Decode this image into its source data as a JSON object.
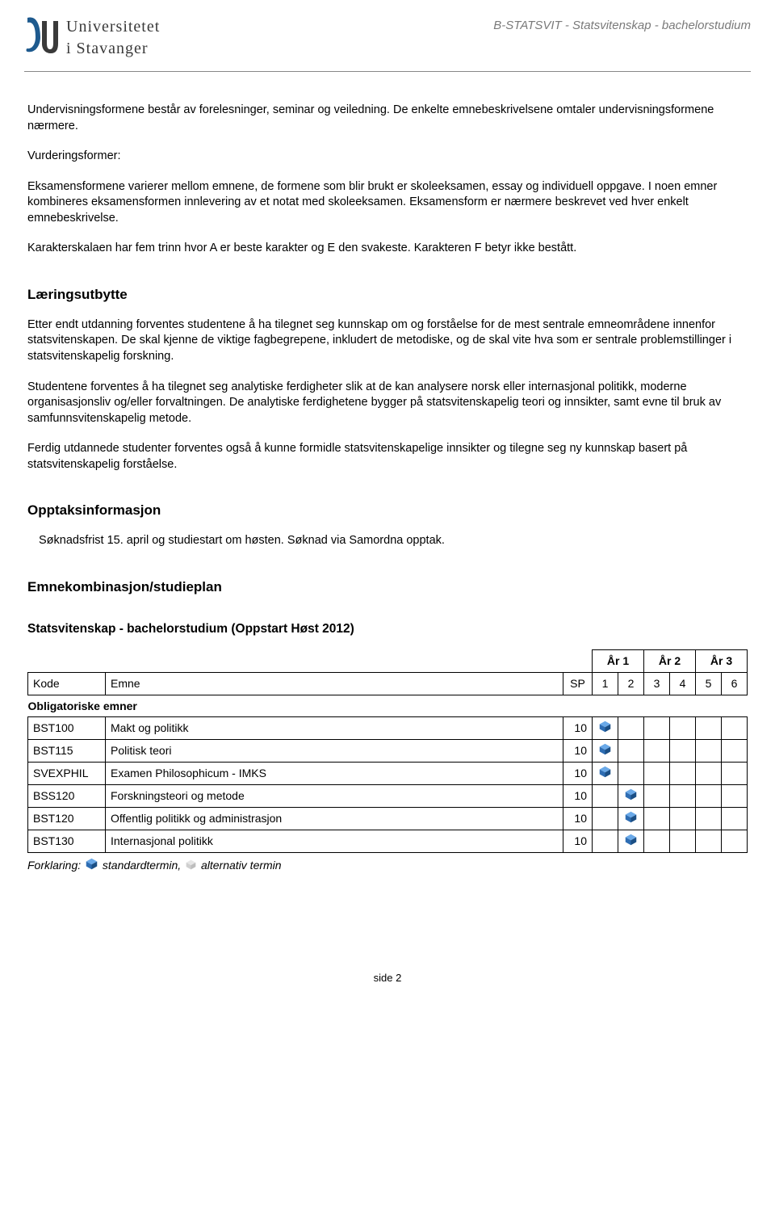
{
  "header": {
    "uni_line1": "Universitetet",
    "uni_line2": "i Stavanger",
    "doc_title": "B-STATSVIT - Statsvitenskap - bachelorstudium"
  },
  "body": {
    "p1": "Undervisningsformene består av forelesninger, seminar og veiledning. De enkelte emnebeskrivelsene omtaler undervisningsformene nærmere.",
    "p2_label": "Vurderingsformer:",
    "p3": "Eksamensformene varierer mellom emnene, de formene som blir brukt er skoleeksamen, essay og individuell oppgave. I noen emner kombineres eksamensformen innlevering av et notat med skoleeksamen. Eksamensform er nærmere beskrevet ved hver enkelt emnebeskrivelse.",
    "p4": "Karakterskalaen har fem trinn hvor A er beste karakter og E den svakeste. Karakteren F betyr ikke bestått.",
    "h_lu": "Læringsutbytte",
    "lu_p1": "Etter endt utdanning forventes studentene å ha tilegnet seg kunnskap om og forståelse for de mest sentrale emneområdene innenfor statsvitenskapen. De skal kjenne de viktige fagbegrepene, inkludert de metodiske, og de skal vite hva som er sentrale problemstillinger i statsvitenskapelig forskning.",
    "lu_p2": "Studentene forventes å ha tilegnet seg analytiske ferdigheter slik at de kan analysere norsk eller internasjonal politikk, moderne organisasjonsliv og/eller forvaltningen. De analytiske ferdighetene bygger på statsvitenskapelig teori og innsikter, samt evne til bruk av samfunnsvitenskapelig metode.",
    "lu_p3": "Ferdig utdannede studenter forventes også å kunne formidle statsvitenskapelige innsikter og tilegne seg ny kunnskap basert på statsvitenskapelig forståelse.",
    "h_opp": "Opptaksinformasjon",
    "opp_p1": "Søknadsfrist 15. april og studiestart om høsten. Søknad via Samordna opptak.",
    "h_emn": "Emnekombinasjon/studieplan",
    "plan_title": "Statsvitenskap - bachelorstudium (Oppstart Høst 2012)"
  },
  "table": {
    "years": [
      "År 1",
      "År 2",
      "År 3"
    ],
    "head": {
      "kode": "Kode",
      "emne": "Emne",
      "sp": "SP",
      "sems": [
        "1",
        "2",
        "3",
        "4",
        "5",
        "6"
      ]
    },
    "category": "Obligatoriske emner",
    "rows": [
      {
        "kode": "BST100",
        "emne": "Makt og politikk",
        "sp": "10",
        "sem": 1
      },
      {
        "kode": "BST115",
        "emne": "Politisk teori",
        "sp": "10",
        "sem": 1
      },
      {
        "kode": "SVEXPHIL",
        "emne": "Examen Philosophicum - IMKS",
        "sp": "10",
        "sem": 1
      },
      {
        "kode": "BSS120",
        "emne": "Forskningsteori og metode",
        "sp": "10",
        "sem": 2
      },
      {
        "kode": "BST120",
        "emne": "Offentlig politikk og administrasjon",
        "sp": "10",
        "sem": 2
      },
      {
        "kode": "BST130",
        "emne": "Internasjonal politikk",
        "sp": "10",
        "sem": 2
      }
    ],
    "legend_prefix": "Forklaring:",
    "legend_std": "standardtermin,",
    "legend_alt": "alternativ termin",
    "colors": {
      "cube_std_top": "#6aa9e8",
      "cube_std_left": "#2e6db3",
      "cube_std_right": "#1b4f85",
      "cube_alt": "#c8c8c8",
      "border": "#000000"
    }
  },
  "footer": {
    "page": "side 2"
  }
}
